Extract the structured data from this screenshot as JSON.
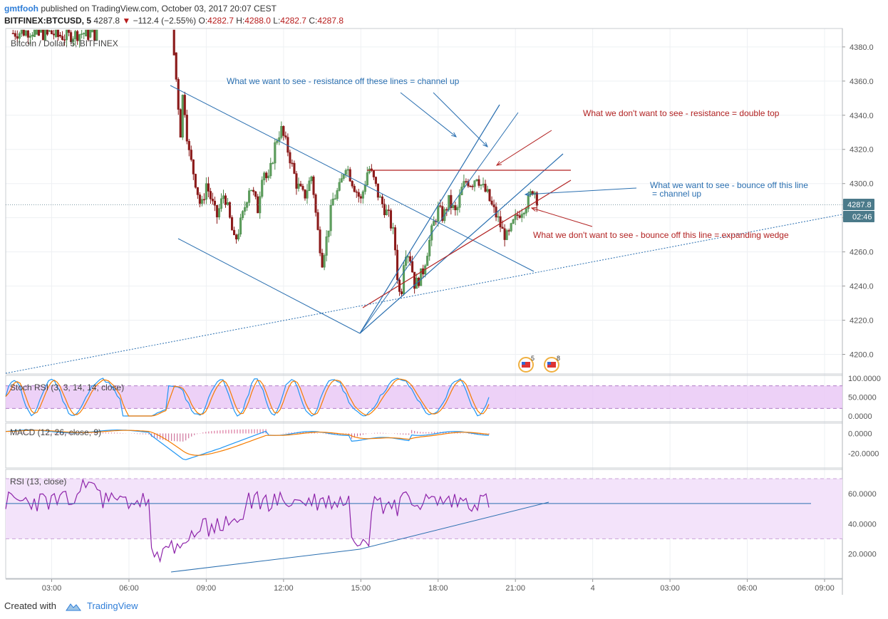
{
  "header": {
    "author": "gmtfooh",
    "published_text": "published on TradingView.com, October 03, 2017 20:07 CEST",
    "symbol": "BITFINEX:BTCUSD, 5",
    "last": "4287.8",
    "arrow": "▼",
    "change": "−112.4 (−2.55%)",
    "o_label": "O:",
    "o": "4282.7",
    "h_label": "H:",
    "h": "4288.0",
    "l_label": "L:",
    "l": "4282.7",
    "c_label": "C:",
    "c": "4287.8"
  },
  "footer": {
    "created_with": "Created with",
    "brand": "TradingView"
  },
  "colors": {
    "up": "#4a8a4a",
    "down": "#8b1a1a",
    "blue": "#2a6fb0",
    "red": "#b22222",
    "stoch_k": "#2196f3",
    "stoch_d": "#f57c00",
    "rsi": "#8e24aa",
    "band": "#e9c6f5"
  },
  "chart_data": [
    {
      "type": "candlestick",
      "title": "Bitcoin / Dollar, 5, BITFINEX",
      "x_ticks": [
        "03:00",
        "06:00",
        "09:00",
        "12:00",
        "15:00",
        "18:00",
        "21:00",
        "4",
        "03:00",
        "06:00",
        "09:00"
      ],
      "y_ticks": [
        "4200.0",
        "4220.0",
        "4240.0",
        "4260.0",
        "4280.0",
        "4300.0",
        "4320.0",
        "4340.0",
        "4360.0",
        "4380.0"
      ],
      "ylim": [
        4190,
        4390
      ],
      "last_price_label": "4287.8",
      "countdown_label": "02:46",
      "close_path": [
        [
          0.0,
          4388
        ],
        [
          1.0,
          4390
        ],
        [
          2.0,
          4386
        ],
        [
          3.0,
          4389
        ],
        [
          6.2,
          4386
        ],
        [
          6.35,
          4358
        ],
        [
          6.5,
          4330
        ],
        [
          6.6,
          4355
        ],
        [
          6.8,
          4320
        ],
        [
          7.1,
          4300
        ],
        [
          7.3,
          4285
        ],
        [
          7.5,
          4300
        ],
        [
          7.9,
          4280
        ],
        [
          8.2,
          4295
        ],
        [
          8.6,
          4265
        ],
        [
          8.9,
          4280
        ],
        [
          9.2,
          4300
        ],
        [
          9.5,
          4285
        ],
        [
          9.7,
          4310
        ],
        [
          9.9,
          4300
        ],
        [
          10.2,
          4325
        ],
        [
          10.4,
          4332
        ],
        [
          10.7,
          4318
        ],
        [
          11.0,
          4300
        ],
        [
          11.3,
          4292
        ],
        [
          11.6,
          4305
        ],
        [
          11.8,
          4275
        ],
        [
          12.0,
          4255
        ],
        [
          12.2,
          4270
        ],
        [
          12.4,
          4290
        ],
        [
          12.7,
          4298
        ],
        [
          12.9,
          4312
        ],
        [
          13.2,
          4300
        ],
        [
          13.5,
          4290
        ],
        [
          13.8,
          4310
        ],
        [
          14.0,
          4302
        ],
        [
          14.2,
          4292
        ],
        [
          14.4,
          4286
        ],
        [
          14.6,
          4280
        ],
        [
          14.8,
          4268
        ],
        [
          14.95,
          4240
        ],
        [
          15.05,
          4232
        ],
        [
          15.2,
          4262
        ],
        [
          15.4,
          4258
        ],
        [
          15.6,
          4240
        ],
        [
          15.9,
          4248
        ],
        [
          16.1,
          4262
        ],
        [
          16.3,
          4275
        ],
        [
          16.5,
          4285
        ],
        [
          16.7,
          4280
        ],
        [
          16.9,
          4290
        ],
        [
          17.2,
          4282
        ],
        [
          17.4,
          4296
        ],
        [
          17.6,
          4302
        ],
        [
          17.8,
          4300
        ],
        [
          18.0,
          4305
        ],
        [
          18.2,
          4298
        ],
        [
          18.4,
          4294
        ],
        [
          18.6,
          4286
        ],
        [
          18.8,
          4280
        ],
        [
          19.0,
          4272
        ],
        [
          19.2,
          4268
        ],
        [
          19.4,
          4276
        ],
        [
          19.6,
          4282
        ],
        [
          19.8,
          4286
        ],
        [
          20.0,
          4290
        ],
        [
          20.2,
          4298
        ],
        [
          20.4,
          4287.8
        ]
      ],
      "annotations": [
        {
          "text": "What we want to see - resistance off these lines = channel up",
          "color": "blue"
        },
        {
          "text": "What we don't want to see - resistance = double top",
          "color": "red"
        },
        {
          "text": "What we want to see - bounce off this line",
          "color": "blue"
        },
        {
          "text": "= channel up",
          "color": "blue"
        },
        {
          "text": "What we don't want to see - bounce off this line = expanding wedge",
          "color": "red"
        }
      ],
      "event_badges": [
        "5",
        "8"
      ]
    },
    {
      "type": "line",
      "title": "Stoch RSI (3, 3, 14, 14, close)",
      "y_ticks": [
        "100.0000",
        "50.0000",
        "0.0000"
      ],
      "ylim": [
        0,
        100
      ],
      "band": [
        20,
        80
      ]
    },
    {
      "type": "line",
      "title": "MACD (12, 26, close, 9)",
      "y_ticks": [
        "0.0000",
        "-20.0000"
      ],
      "ylim": [
        -35,
        10
      ]
    },
    {
      "type": "line",
      "title": "RSI (13, close)",
      "y_ticks": [
        "60.0000",
        "40.0000",
        "20.0000"
      ],
      "ylim": [
        0,
        80
      ],
      "band": [
        30,
        70
      ],
      "level": 53.5
    }
  ]
}
